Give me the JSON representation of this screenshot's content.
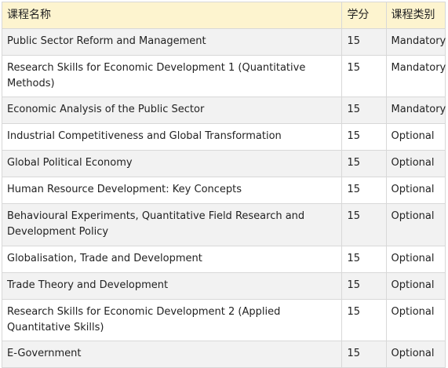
{
  "headers": {
    "name": "课程名称",
    "credit": "学分",
    "category": "课程类别"
  },
  "rows": [
    {
      "name": "Public Sector Reform and Management",
      "credit": "15",
      "category": "Mandatory"
    },
    {
      "name": "Research Skills for Economic Development 1 (Quantitative Methods)",
      "credit": "15",
      "category": "Mandatory"
    },
    {
      "name": "Economic Analysis of the Public Sector",
      "credit": "15",
      "category": "Mandatory"
    },
    {
      "name": "Industrial Competitiveness and Global Transformation",
      "credit": "15",
      "category": "Optional"
    },
    {
      "name": "Global Political Economy",
      "credit": "15",
      "category": "Optional"
    },
    {
      "name": "Human Resource Development: Key Concepts",
      "credit": "15",
      "category": "Optional"
    },
    {
      "name": "Behavioural Experiments, Quantitative Field Research and Development Policy",
      "credit": "15",
      "category": "Optional"
    },
    {
      "name": "Globalisation, Trade and Development",
      "credit": "15",
      "category": "Optional"
    },
    {
      "name": "Trade Theory and Development",
      "credit": "15",
      "category": "Optional"
    },
    {
      "name": "Research Skills for Economic Development 2 (Applied Quantitative Skills)",
      "credit": "15",
      "category": "Optional"
    },
    {
      "name": "E-Government",
      "credit": "15",
      "category": "Optional"
    }
  ]
}
